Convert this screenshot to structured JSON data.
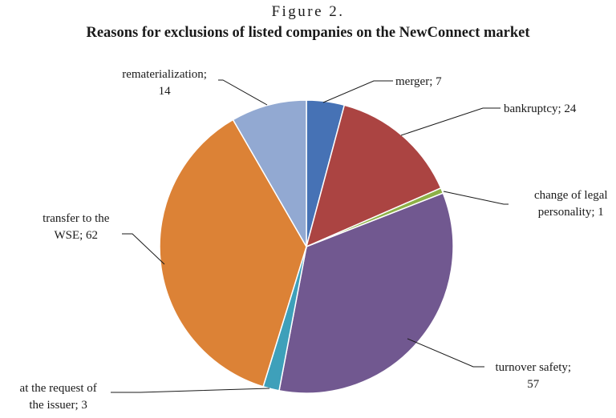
{
  "figure_label": "Figure 2.",
  "chart_data": {
    "type": "pie",
    "title": "Reasons for exclusions of listed companies on the NewConnect market",
    "start": "12 o'clock",
    "direction": "clockwise",
    "slices": [
      {
        "label": "merger",
        "value": 7,
        "color": "#4672b5",
        "text": [
          "merger; 7"
        ]
      },
      {
        "label": "bankruptcy",
        "value": 24,
        "color": "#ab4442",
        "text": [
          "bankruptcy; 24"
        ]
      },
      {
        "label": "change of legal personality",
        "value": 1,
        "color": "#8db147",
        "text": [
          "change of legal",
          "personality; 1"
        ]
      },
      {
        "label": "turnover safety",
        "value": 57,
        "color": "#715890",
        "text": [
          "turnover safety;",
          "57"
        ]
      },
      {
        "label": "at the request of the issuer",
        "value": 3,
        "color": "#3ea0ba",
        "text": [
          "at the request of",
          "the issuer; 3"
        ]
      },
      {
        "label": "transfer to the WSE",
        "value": 62,
        "color": "#dc8236",
        "text": [
          "transfer to the",
          "WSE; 62"
        ]
      },
      {
        "label": "rematerialization",
        "value": 14,
        "color": "#92a9d2",
        "text": [
          "rematerialization;",
          "14"
        ]
      }
    ]
  }
}
